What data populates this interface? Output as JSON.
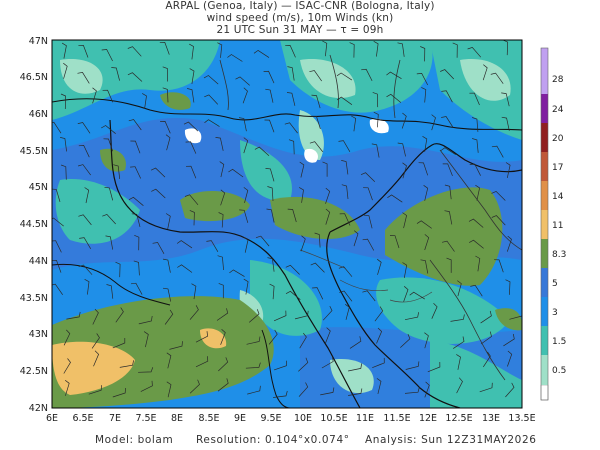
{
  "header": {
    "line1": "ARPAL (Genoa, Italy)  —  ISAC-CNR (Bologna, Italy)",
    "line2": "wind speed (m/s), 10m Winds (kn)",
    "line3": "21 UTC Sun 31 MAY  —  τ = 09h"
  },
  "axes": {
    "lat_labels": [
      "47N",
      "46.5N",
      "46N",
      "45.5N",
      "45N",
      "44.5N",
      "44N",
      "43.5N",
      "43N",
      "42.5N",
      "42N"
    ],
    "lon_labels": [
      "6E",
      "6.5E",
      "7E",
      "7.5E",
      "8E",
      "8.5E",
      "9E",
      "9.5E",
      "10E",
      "10.5E",
      "11E",
      "11.5E",
      "12E",
      "12.5E",
      "13E",
      "13.5E"
    ]
  },
  "colorbar": {
    "labels": [
      "0.5",
      "1.5",
      "3",
      "5",
      "8.3",
      "11",
      "14",
      "17",
      "20",
      "24",
      "28"
    ],
    "colors": [
      "#ffffff",
      "#9fe0c8",
      "#40c0b0",
      "#1f8fe8",
      "#3878d8",
      "#6a9a48",
      "#f0c068",
      "#e09048",
      "#c05838",
      "#902020",
      "#8020a0",
      "#c0a0f0"
    ]
  },
  "footer": {
    "model": "Model: bolam",
    "resolution": "Resolution: 0.104°x0.074°",
    "analysis": "Analysis: Sun 12Z31MAY2026"
  }
}
